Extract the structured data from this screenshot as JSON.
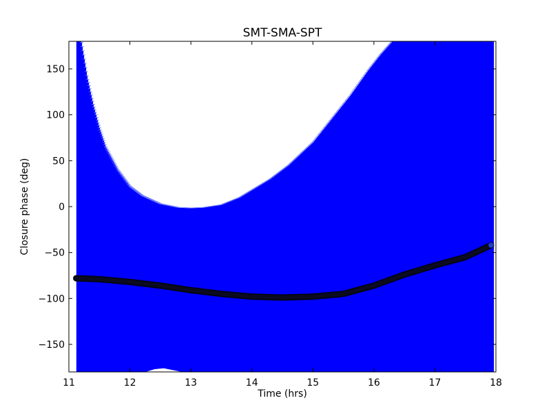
{
  "chart_data": {
    "type": "scatter",
    "title": "SMT-SMA-SPT",
    "xlabel": "Time (hrs)",
    "ylabel": "Closure phase (deg)",
    "xlim": [
      11,
      18
    ],
    "ylim": [
      -180,
      180
    ],
    "xticks": [
      11,
      12,
      13,
      14,
      15,
      16,
      17,
      18
    ],
    "yticks": [
      -150,
      -100,
      -50,
      0,
      50,
      100,
      150
    ],
    "xtick_labels": [
      "11",
      "12",
      "13",
      "14",
      "15",
      "16",
      "17",
      "18"
    ],
    "ytick_labels": [
      "−150",
      "−100",
      "−50",
      "0",
      "50",
      "100",
      "150"
    ],
    "grid": false,
    "colors": {
      "points": "#000000",
      "point_fill": "#111133",
      "errorbars": "#0000ff",
      "last_point": "#1f3fd0"
    },
    "series": [
      {
        "x": [
          11.12,
          11.5,
          12.0,
          12.5,
          13.0,
          13.5,
          14.0,
          14.5,
          15.0,
          15.5,
          16.0,
          16.5,
          17.0,
          17.5,
          17.92
        ],
        "y": [
          -78,
          -79,
          -82,
          -86,
          -91,
          -95,
          -98,
          -99,
          -98,
          -95,
          -86,
          -74,
          -64,
          -55,
          -42
        ]
      }
    ],
    "errorbar_envelope": {
      "x": [
        11.12,
        11.2,
        11.3,
        11.4,
        11.5,
        11.6,
        11.8,
        12.0,
        12.2,
        12.5,
        12.8,
        13.0,
        13.2,
        13.5,
        13.8,
        14.0,
        14.3,
        14.6,
        15.0,
        15.3,
        15.6,
        15.9,
        16.1,
        16.3,
        16.6,
        17.0,
        17.5,
        17.95
      ],
      "upper": [
        180,
        180,
        140,
        110,
        85,
        65,
        40,
        22,
        12,
        3,
        -1,
        -1.5,
        -1,
        2,
        10,
        18,
        30,
        45,
        70,
        95,
        120,
        148,
        165,
        180,
        180,
        180,
        180,
        180
      ],
      "lower_gap": {
        "x": [
          12.25,
          12.4,
          12.55,
          12.7,
          12.85
        ],
        "y": [
          -180,
          -177,
          -176,
          -178,
          -180
        ]
      }
    }
  }
}
